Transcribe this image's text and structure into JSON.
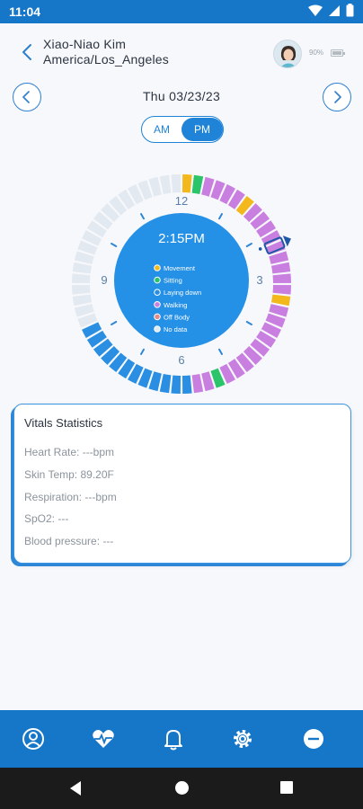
{
  "status_bar": {
    "time": "11:04"
  },
  "header": {
    "name": "Xiao-Niao Kim",
    "timezone": "America/Los_Angeles",
    "battery": "90%"
  },
  "date": {
    "label": "Thu 03/23/23"
  },
  "toggle": {
    "am": "AM",
    "pm": "PM",
    "selected": "PM"
  },
  "dial": {
    "time": "2:15PM",
    "hour_labels": {
      "top": "12",
      "right": "3",
      "bottom": "6",
      "left": "9"
    },
    "segments": [
      "movement",
      "sitting",
      "walking",
      "walking",
      "walking",
      "walking",
      "movement",
      "walking",
      "walking",
      "walking",
      "walking",
      "walking",
      "walking",
      "walking",
      "walking",
      "walking",
      "movement",
      "walking",
      "walking",
      "walking",
      "walking",
      "walking",
      "walking",
      "walking",
      "walking",
      "walking",
      "sitting",
      "walking",
      "walking",
      "lying",
      "lying",
      "lying",
      "lying",
      "lying",
      "lying",
      "lying",
      "lying",
      "lying",
      "lying",
      "lying",
      "lying",
      "nodata",
      "nodata",
      "nodata",
      "nodata",
      "nodata",
      "nodata",
      "nodata",
      "nodata",
      "nodata",
      "nodata",
      "nodata",
      "nodata",
      "nodata",
      "nodata",
      "nodata",
      "nodata",
      "nodata",
      "nodata",
      "nodata"
    ],
    "current_minute": 15,
    "legend": [
      {
        "key": "movement",
        "label": "Movement",
        "color": "#f2b81c"
      },
      {
        "key": "sitting",
        "label": "Sitting",
        "color": "#2cc46b"
      },
      {
        "key": "lying",
        "label": "Laying down",
        "color": "#2a8fe2"
      },
      {
        "key": "walking",
        "label": "Walking",
        "color": "#c97fe0"
      },
      {
        "key": "offbody",
        "label": "Off Body",
        "color": "#e58b8b"
      },
      {
        "key": "nodata",
        "label": "No data",
        "color": "#e3e9f0"
      }
    ]
  },
  "vitals": {
    "title": "Vitals Statistics",
    "lines": [
      "Heart Rate: ---bpm",
      "Skin Temp: 89.20F",
      "Respiration: ---bpm",
      "SpO2: ---",
      "Blood pressure: ---"
    ]
  },
  "colors": {
    "primary": "#1676c8",
    "dial_center": "#2490e6"
  }
}
